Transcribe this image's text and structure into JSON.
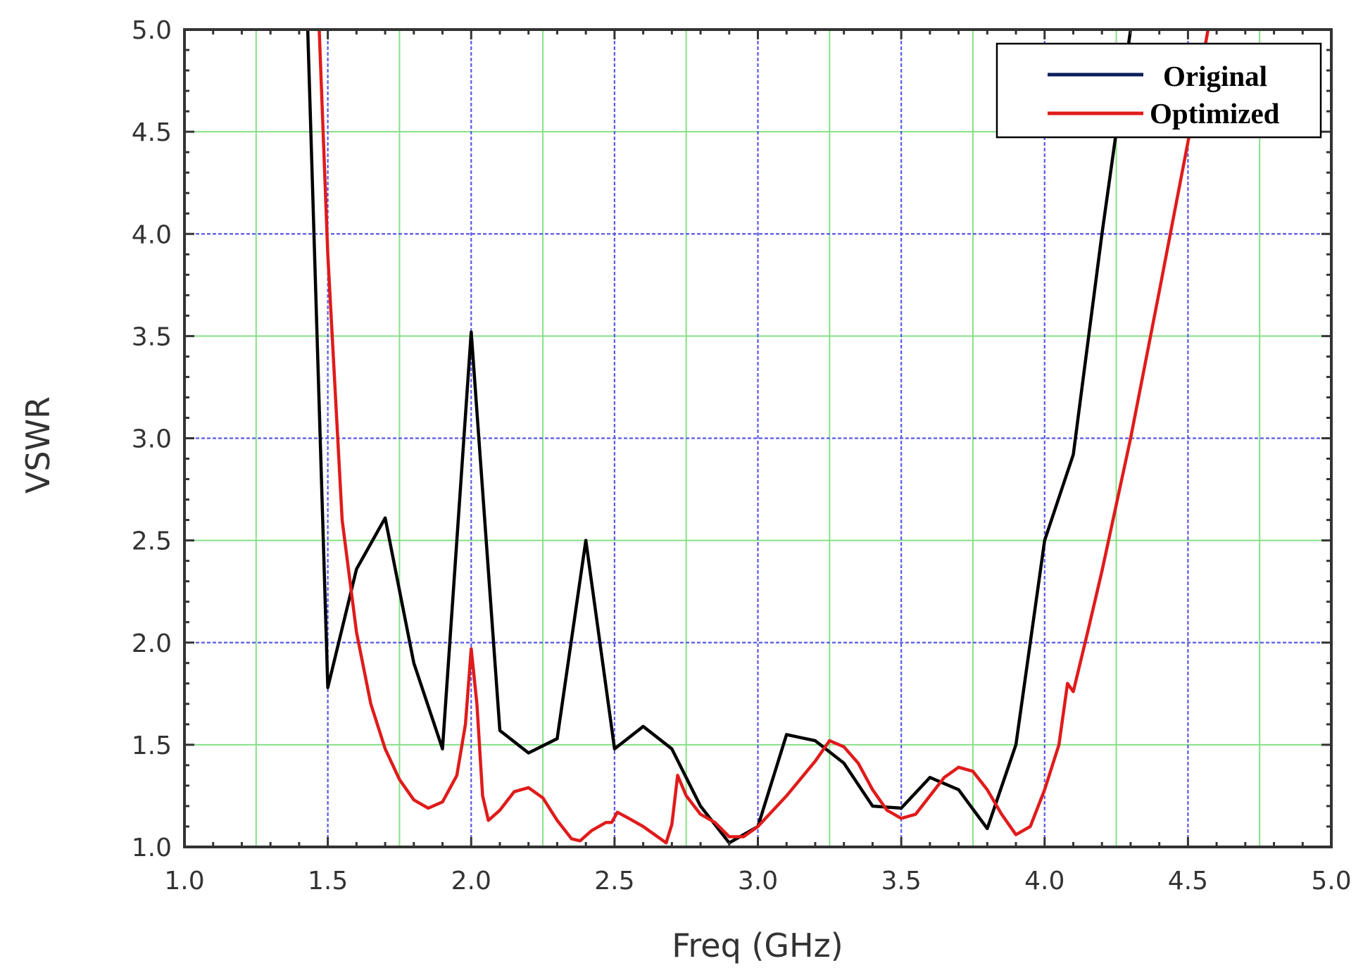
{
  "chart_data": {
    "type": "line",
    "xlabel": "Freq (GHz)",
    "ylabel": "VSWR",
    "xlim": [
      1.0,
      5.0
    ],
    "ylim": [
      1.0,
      5.0
    ],
    "x_ticks": [
      "1.0",
      "1.5",
      "2.0",
      "2.5",
      "3.0",
      "3.5",
      "4.0",
      "4.5",
      "5.0"
    ],
    "y_ticks": [
      "1.0",
      "1.5",
      "2.0",
      "2.5",
      "3.0",
      "3.5",
      "4.0",
      "4.5",
      "5.0"
    ],
    "grid": true,
    "legend_position": "top-right",
    "colors": {
      "grid_major": "#5a5ae6",
      "grid_minor": "#86e086",
      "axis": "#333333"
    },
    "series": [
      {
        "name": "Original",
        "color": "#000000",
        "legend_color": "#0b1f5c",
        "points": [
          [
            1.43,
            5.0
          ],
          [
            1.5,
            1.78
          ],
          [
            1.6,
            2.36
          ],
          [
            1.7,
            2.61
          ],
          [
            1.8,
            1.9
          ],
          [
            1.9,
            1.48
          ],
          [
            2.0,
            3.52
          ],
          [
            2.1,
            1.57
          ],
          [
            2.2,
            1.46
          ],
          [
            2.3,
            1.53
          ],
          [
            2.4,
            2.5
          ],
          [
            2.5,
            1.48
          ],
          [
            2.6,
            1.59
          ],
          [
            2.7,
            1.48
          ],
          [
            2.8,
            1.2
          ],
          [
            2.9,
            1.02
          ],
          [
            3.0,
            1.1
          ],
          [
            3.1,
            1.55
          ],
          [
            3.2,
            1.52
          ],
          [
            3.3,
            1.41
          ],
          [
            3.4,
            1.2
          ],
          [
            3.5,
            1.19
          ],
          [
            3.6,
            1.34
          ],
          [
            3.7,
            1.28
          ],
          [
            3.8,
            1.09
          ],
          [
            3.9,
            1.5
          ],
          [
            4.0,
            2.5
          ],
          [
            4.1,
            2.92
          ],
          [
            4.2,
            4.0
          ],
          [
            4.3,
            5.0
          ]
        ]
      },
      {
        "name": "Optimized",
        "color": "#e01b1b",
        "legend_color": "#e01b1b",
        "points": [
          [
            1.47,
            5.0
          ],
          [
            1.5,
            3.9
          ],
          [
            1.55,
            2.6
          ],
          [
            1.6,
            2.05
          ],
          [
            1.65,
            1.7
          ],
          [
            1.7,
            1.48
          ],
          [
            1.75,
            1.33
          ],
          [
            1.8,
            1.23
          ],
          [
            1.85,
            1.19
          ],
          [
            1.9,
            1.22
          ],
          [
            1.95,
            1.35
          ],
          [
            1.98,
            1.6
          ],
          [
            2.0,
            1.97
          ],
          [
            2.02,
            1.7
          ],
          [
            2.04,
            1.25
          ],
          [
            2.06,
            1.13
          ],
          [
            2.1,
            1.18
          ],
          [
            2.15,
            1.27
          ],
          [
            2.2,
            1.29
          ],
          [
            2.25,
            1.24
          ],
          [
            2.3,
            1.13
          ],
          [
            2.35,
            1.04
          ],
          [
            2.38,
            1.03
          ],
          [
            2.42,
            1.08
          ],
          [
            2.47,
            1.12
          ],
          [
            2.49,
            1.12
          ],
          [
            2.51,
            1.17
          ],
          [
            2.55,
            1.14
          ],
          [
            2.6,
            1.1
          ],
          [
            2.65,
            1.05
          ],
          [
            2.68,
            1.02
          ],
          [
            2.7,
            1.11
          ],
          [
            2.72,
            1.35
          ],
          [
            2.75,
            1.25
          ],
          [
            2.8,
            1.16
          ],
          [
            2.85,
            1.12
          ],
          [
            2.9,
            1.05
          ],
          [
            2.95,
            1.05
          ],
          [
            3.0,
            1.1
          ],
          [
            3.1,
            1.25
          ],
          [
            3.2,
            1.42
          ],
          [
            3.25,
            1.52
          ],
          [
            3.3,
            1.49
          ],
          [
            3.35,
            1.41
          ],
          [
            3.4,
            1.28
          ],
          [
            3.45,
            1.18
          ],
          [
            3.5,
            1.14
          ],
          [
            3.55,
            1.16
          ],
          [
            3.6,
            1.25
          ],
          [
            3.65,
            1.34
          ],
          [
            3.7,
            1.39
          ],
          [
            3.75,
            1.37
          ],
          [
            3.8,
            1.28
          ],
          [
            3.85,
            1.16
          ],
          [
            3.9,
            1.06
          ],
          [
            3.95,
            1.1
          ],
          [
            4.0,
            1.28
          ],
          [
            4.05,
            1.5
          ],
          [
            4.08,
            1.8
          ],
          [
            4.1,
            1.76
          ],
          [
            4.15,
            2.05
          ],
          [
            4.2,
            2.35
          ],
          [
            4.3,
            3.0
          ],
          [
            4.4,
            3.72
          ],
          [
            4.5,
            4.45
          ],
          [
            4.57,
            5.0
          ]
        ]
      }
    ]
  }
}
